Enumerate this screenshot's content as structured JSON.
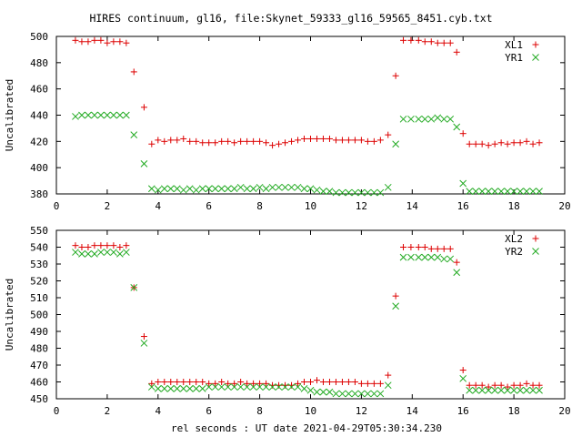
{
  "figure": {
    "title": "HIRES continuum, gl16, file:Skynet_59333_gl16_59565_8451.cyb.txt",
    "xlabel": "rel seconds : UT date 2021-04-29T05:30:34.230"
  },
  "colors": {
    "plus_series": "#dd0000",
    "cross_series": "#22aa22",
    "axes": "#000000",
    "background": "#ffffff"
  },
  "chart_data": [
    {
      "type": "scatter",
      "title": "HIRES continuum, gl16, file:Skynet_59333_gl16_59565_8451.cyb.txt",
      "xlabel": "",
      "ylabel": "Uncalibrated",
      "xlim": [
        0,
        20
      ],
      "ylim": [
        380,
        500
      ],
      "xticks": [
        0,
        2,
        4,
        6,
        8,
        10,
        12,
        14,
        16,
        18,
        20
      ],
      "yticks": [
        380,
        400,
        420,
        440,
        460,
        480,
        500
      ],
      "grid": false,
      "legend": "top-right",
      "series": [
        {
          "name": "XL1",
          "marker": "plus",
          "color": "#dd0000",
          "x": [
            0.75,
            1.0,
            1.25,
            1.5,
            1.75,
            2.0,
            2.25,
            2.5,
            2.75,
            3.05,
            3.45,
            3.75,
            4.0,
            4.25,
            4.5,
            4.75,
            5.0,
            5.25,
            5.5,
            5.75,
            6.0,
            6.25,
            6.5,
            6.75,
            7.0,
            7.25,
            7.5,
            7.75,
            8.0,
            8.25,
            8.5,
            8.75,
            9.0,
            9.25,
            9.5,
            9.75,
            10.0,
            10.25,
            10.5,
            10.75,
            11.0,
            11.25,
            11.5,
            11.75,
            12.0,
            12.25,
            12.5,
            12.75,
            13.05,
            13.35,
            13.65,
            13.95,
            14.25,
            14.5,
            14.75,
            15.0,
            15.25,
            15.5,
            15.75,
            16.0,
            16.25,
            16.5,
            16.75,
            17.0,
            17.25,
            17.5,
            17.75,
            18.0,
            18.25,
            18.5,
            18.75,
            19.0
          ],
          "y": [
            497,
            496,
            496,
            497,
            497,
            495,
            496,
            496,
            495,
            473,
            446,
            418,
            421,
            420,
            421,
            421,
            422,
            420,
            420,
            419,
            419,
            419,
            420,
            420,
            419,
            420,
            420,
            420,
            420,
            419,
            417,
            418,
            419,
            420,
            421,
            422,
            422,
            422,
            422,
            422,
            421,
            421,
            421,
            421,
            421,
            420,
            420,
            421,
            425,
            470,
            497,
            497,
            497,
            496,
            496,
            495,
            495,
            495,
            488,
            426,
            418,
            418,
            418,
            417,
            418,
            419,
            418,
            419,
            419,
            420,
            418,
            419
          ]
        },
        {
          "name": "YR1",
          "marker": "cross",
          "color": "#22aa22",
          "x": [
            0.75,
            1.0,
            1.25,
            1.5,
            1.75,
            2.0,
            2.25,
            2.5,
            2.75,
            3.05,
            3.45,
            3.75,
            4.0,
            4.25,
            4.5,
            4.75,
            5.0,
            5.25,
            5.5,
            5.75,
            6.0,
            6.25,
            6.5,
            6.75,
            7.0,
            7.25,
            7.5,
            7.75,
            8.0,
            8.25,
            8.5,
            8.75,
            9.0,
            9.25,
            9.5,
            9.75,
            10.0,
            10.25,
            10.5,
            10.75,
            11.0,
            11.25,
            11.5,
            11.75,
            12.0,
            12.25,
            12.5,
            12.75,
            13.05,
            13.35,
            13.65,
            13.95,
            14.25,
            14.5,
            14.75,
            15.0,
            15.25,
            15.5,
            15.75,
            16.0,
            16.25,
            16.5,
            16.75,
            17.0,
            17.25,
            17.5,
            17.75,
            18.0,
            18.25,
            18.5,
            18.75,
            19.0
          ],
          "y": [
            439,
            440,
            440,
            440,
            440,
            440,
            440,
            440,
            440,
            425,
            403,
            384,
            383,
            384,
            384,
            384,
            383,
            384,
            383,
            384,
            384,
            384,
            384,
            384,
            384,
            385,
            384,
            384,
            385,
            384,
            385,
            385,
            385,
            385,
            385,
            384,
            384,
            383,
            382,
            382,
            381,
            381,
            381,
            381,
            381,
            381,
            381,
            381,
            385,
            418,
            437,
            437,
            437,
            437,
            437,
            438,
            437,
            437,
            431,
            388,
            382,
            382,
            382,
            382,
            382,
            382,
            382,
            382,
            382,
            382,
            382,
            382
          ]
        }
      ]
    },
    {
      "type": "scatter",
      "title": "",
      "xlabel": "rel seconds : UT date 2021-04-29T05:30:34.230",
      "ylabel": "Uncalibrated",
      "xlim": [
        0,
        20
      ],
      "ylim": [
        450,
        550
      ],
      "xticks": [
        0,
        2,
        4,
        6,
        8,
        10,
        12,
        14,
        16,
        18,
        20
      ],
      "yticks": [
        450,
        460,
        470,
        480,
        490,
        500,
        510,
        520,
        530,
        540,
        550
      ],
      "grid": false,
      "legend": "top-right",
      "series": [
        {
          "name": "XL2",
          "marker": "plus",
          "color": "#dd0000",
          "x": [
            0.75,
            1.0,
            1.25,
            1.5,
            1.75,
            2.0,
            2.25,
            2.5,
            2.75,
            3.05,
            3.45,
            3.75,
            4.0,
            4.25,
            4.5,
            4.75,
            5.0,
            5.25,
            5.5,
            5.75,
            6.0,
            6.25,
            6.5,
            6.75,
            7.0,
            7.25,
            7.5,
            7.75,
            8.0,
            8.25,
            8.5,
            8.75,
            9.0,
            9.25,
            9.5,
            9.75,
            10.0,
            10.25,
            10.5,
            10.75,
            11.0,
            11.25,
            11.5,
            11.75,
            12.0,
            12.25,
            12.5,
            12.75,
            13.05,
            13.35,
            13.65,
            13.95,
            14.25,
            14.5,
            14.75,
            15.0,
            15.25,
            15.5,
            15.75,
            16.0,
            16.25,
            16.5,
            16.75,
            17.0,
            17.25,
            17.5,
            17.75,
            18.0,
            18.25,
            18.5,
            18.75,
            19.0
          ],
          "y": [
            541,
            540,
            540,
            541,
            541,
            541,
            541,
            540,
            541,
            516,
            487,
            459,
            460,
            460,
            460,
            460,
            460,
            460,
            460,
            460,
            459,
            459,
            460,
            459,
            459,
            460,
            459,
            459,
            459,
            459,
            458,
            458,
            458,
            458,
            459,
            460,
            460,
            461,
            460,
            460,
            460,
            460,
            460,
            460,
            459,
            459,
            459,
            459,
            464,
            511,
            540,
            540,
            540,
            540,
            539,
            539,
            539,
            539,
            531,
            467,
            458,
            458,
            458,
            457,
            458,
            458,
            457,
            458,
            458,
            459,
            458,
            458
          ]
        },
        {
          "name": "YR2",
          "marker": "cross",
          "color": "#22aa22",
          "x": [
            0.75,
            1.0,
            1.25,
            1.5,
            1.75,
            2.0,
            2.25,
            2.5,
            2.75,
            3.05,
            3.45,
            3.75,
            4.0,
            4.25,
            4.5,
            4.75,
            5.0,
            5.25,
            5.5,
            5.75,
            6.0,
            6.25,
            6.5,
            6.75,
            7.0,
            7.25,
            7.5,
            7.75,
            8.0,
            8.25,
            8.5,
            8.75,
            9.0,
            9.25,
            9.5,
            9.75,
            10.0,
            10.25,
            10.5,
            10.75,
            11.0,
            11.25,
            11.5,
            11.75,
            12.0,
            12.25,
            12.5,
            12.75,
            13.05,
            13.35,
            13.65,
            13.95,
            14.25,
            14.5,
            14.75,
            15.0,
            15.25,
            15.5,
            15.75,
            16.0,
            16.25,
            16.5,
            16.75,
            17.0,
            17.25,
            17.5,
            17.75,
            18.0,
            18.25,
            18.5,
            18.75,
            19.0
          ],
          "y": [
            537,
            536,
            536,
            536,
            537,
            537,
            537,
            536,
            537,
            516,
            483,
            457,
            456,
            456,
            456,
            456,
            456,
            456,
            456,
            456,
            457,
            457,
            457,
            457,
            457,
            457,
            457,
            457,
            457,
            457,
            457,
            457,
            457,
            457,
            457,
            456,
            455,
            454,
            454,
            454,
            453,
            453,
            453,
            453,
            453,
            453,
            453,
            453,
            458,
            505,
            534,
            534,
            534,
            534,
            534,
            534,
            533,
            533,
            525,
            462,
            455,
            455,
            455,
            455,
            455,
            455,
            455,
            455,
            455,
            455,
            455,
            455
          ]
        }
      ]
    }
  ]
}
